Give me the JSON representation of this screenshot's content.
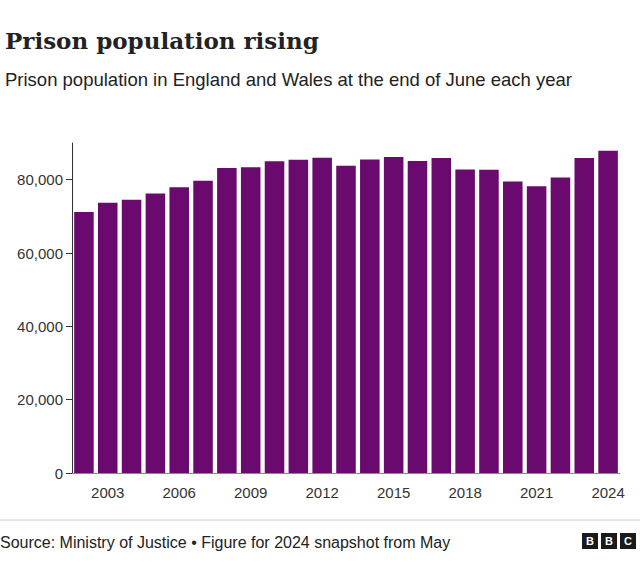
{
  "chart_data": {
    "type": "bar",
    "title": "Prison population rising",
    "subtitle": "Prison population in England and Wales at the end of June each year",
    "source": "Source: Ministry of Justice • Figure for 2024 snapshot from May",
    "logo": "BBC",
    "categories": [
      null,
      "2003",
      null,
      null,
      "2006",
      null,
      null,
      "2009",
      null,
      null,
      "2012",
      null,
      null,
      "2015",
      null,
      null,
      "2018",
      null,
      null,
      "2021",
      null,
      null,
      "2024"
    ],
    "values": [
      71200,
      73700,
      74500,
      76200,
      77900,
      79700,
      83200,
      83400,
      85000,
      85400,
      86000,
      83800,
      85500,
      86200,
      85100,
      85900,
      82800,
      82700,
      79500,
      78200,
      80600,
      85900,
      87900
    ],
    "color": "#6a0a6e",
    "ylim": [
      0,
      90000
    ],
    "yticks": [
      0,
      {
        "value": 20000,
        "label": "20,000"
      },
      {
        "value": 40000,
        "label": "40,000"
      },
      {
        "value": 60000,
        "label": "60,000"
      },
      {
        "value": 80000,
        "label": "80,000"
      }
    ],
    "grid": false
  }
}
